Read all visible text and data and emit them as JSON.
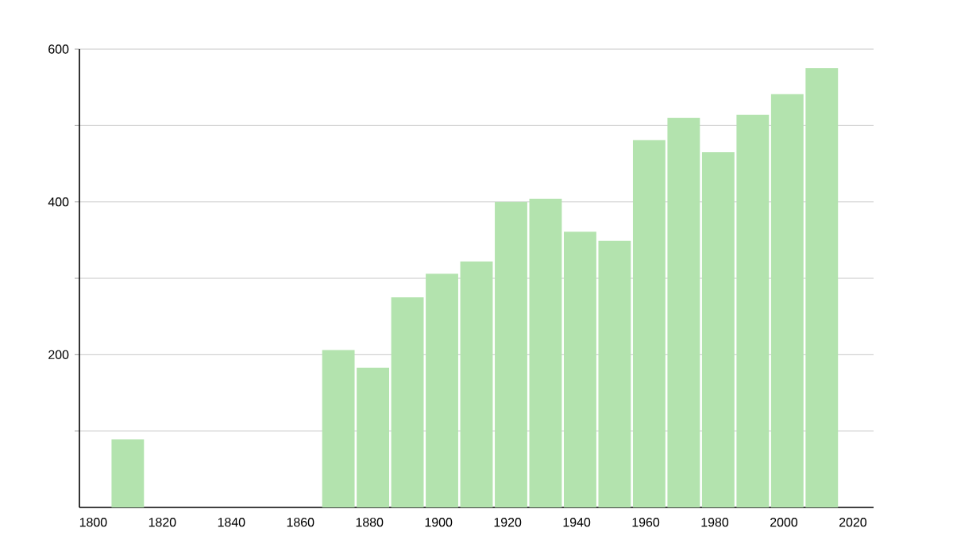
{
  "chart_data": {
    "type": "bar",
    "color": "#b3e3ae",
    "x": [
      1810,
      1871,
      1881,
      1891,
      1901,
      1911,
      1921,
      1931,
      1941,
      1951,
      1961,
      1971,
      1981,
      1991,
      2001,
      2011
    ],
    "values": [
      89,
      206,
      183,
      275,
      306,
      322,
      400,
      404,
      361,
      349,
      481,
      510,
      465,
      514,
      541,
      575
    ],
    "xlim": [
      1796,
      2026
    ],
    "xticks": [
      1800,
      1820,
      1840,
      1860,
      1880,
      1900,
      1920,
      1940,
      1960,
      1980,
      2000,
      2020
    ],
    "ylim": [
      0,
      600
    ],
    "yticks": [
      {
        "value": 100,
        "label": null
      },
      200,
      {
        "value": 300,
        "label": null
      },
      400,
      {
        "value": 500,
        "label": null
      },
      600
    ],
    "grid": "y"
  }
}
